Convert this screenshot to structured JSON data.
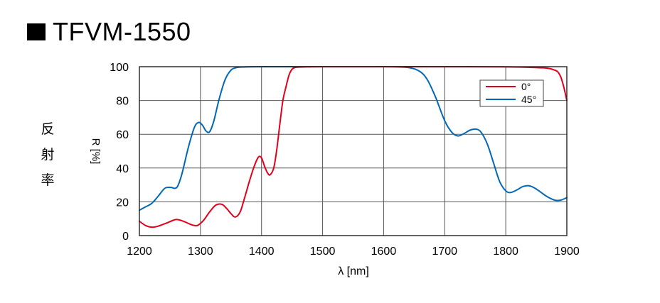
{
  "title": "TFVM-1550",
  "side_label": [
    "反",
    "射",
    "率"
  ],
  "colors": {
    "red": "#e2001a",
    "blue": "#0068b7"
  },
  "chart_data": {
    "type": "line",
    "title": "TFVM-1550",
    "xlabel": "λ [nm]",
    "ylabel": "R [%]",
    "xlim": [
      1200,
      1900
    ],
    "ylim": [
      0,
      100
    ],
    "xticks": [
      1200,
      1300,
      1400,
      1500,
      1600,
      1700,
      1800,
      1900
    ],
    "yticks": [
      0,
      20,
      40,
      60,
      80,
      100
    ],
    "grid": true,
    "legend_position": "top-right",
    "series": [
      {
        "name": "0°",
        "color": "#e2001a",
        "x": [
          1200,
          1210,
          1220,
          1230,
          1245,
          1260,
          1272,
          1285,
          1295,
          1305,
          1315,
          1325,
          1335,
          1343,
          1350,
          1357,
          1365,
          1372,
          1380,
          1388,
          1395,
          1400,
          1405,
          1410,
          1414,
          1420,
          1425,
          1430,
          1435,
          1440,
          1445,
          1450,
          1455,
          1465,
          1480,
          1500,
          1600,
          1700,
          1800,
          1850,
          1870,
          1880,
          1885,
          1890,
          1895,
          1900
        ],
        "y": [
          8.5,
          6,
          5,
          5.5,
          7.5,
          9.5,
          8.5,
          6.5,
          6,
          9,
          14,
          18,
          18.5,
          16,
          13,
          11,
          14,
          22,
          32,
          41,
          46.5,
          46,
          41,
          37,
          36,
          40,
          51,
          66,
          80,
          88,
          95,
          98.5,
          99.5,
          99.8,
          99.9,
          100,
          100,
          100,
          99.9,
          99.5,
          99,
          98,
          97,
          94,
          88,
          80
        ]
      },
      {
        "name": "45°",
        "color": "#0068b7",
        "x": [
          1200,
          1210,
          1220,
          1230,
          1240,
          1245,
          1252,
          1258,
          1263,
          1270,
          1280,
          1290,
          1297,
          1303,
          1309,
          1315,
          1322,
          1330,
          1340,
          1350,
          1360,
          1370,
          1380,
          1400,
          1500,
          1600,
          1640,
          1660,
          1672,
          1685,
          1700,
          1712,
          1722,
          1732,
          1742,
          1752,
          1760,
          1770,
          1780,
          1790,
          1800,
          1808,
          1818,
          1828,
          1838,
          1848,
          1858,
          1868,
          1880,
          1890,
          1900
        ],
        "y": [
          15,
          17,
          19,
          23,
          27.5,
          28.5,
          28.5,
          28,
          29.5,
          37,
          52,
          64,
          67,
          65.5,
          62,
          61.5,
          68,
          80,
          92,
          98,
          99.5,
          99.8,
          99.9,
          100,
          100,
          100,
          99.5,
          97,
          92,
          82,
          68,
          61,
          59,
          60.5,
          62.5,
          63,
          61,
          54,
          43,
          32,
          26.5,
          25.5,
          27,
          29,
          29.5,
          28,
          25.5,
          23,
          21,
          21,
          22.5
        ]
      }
    ]
  }
}
